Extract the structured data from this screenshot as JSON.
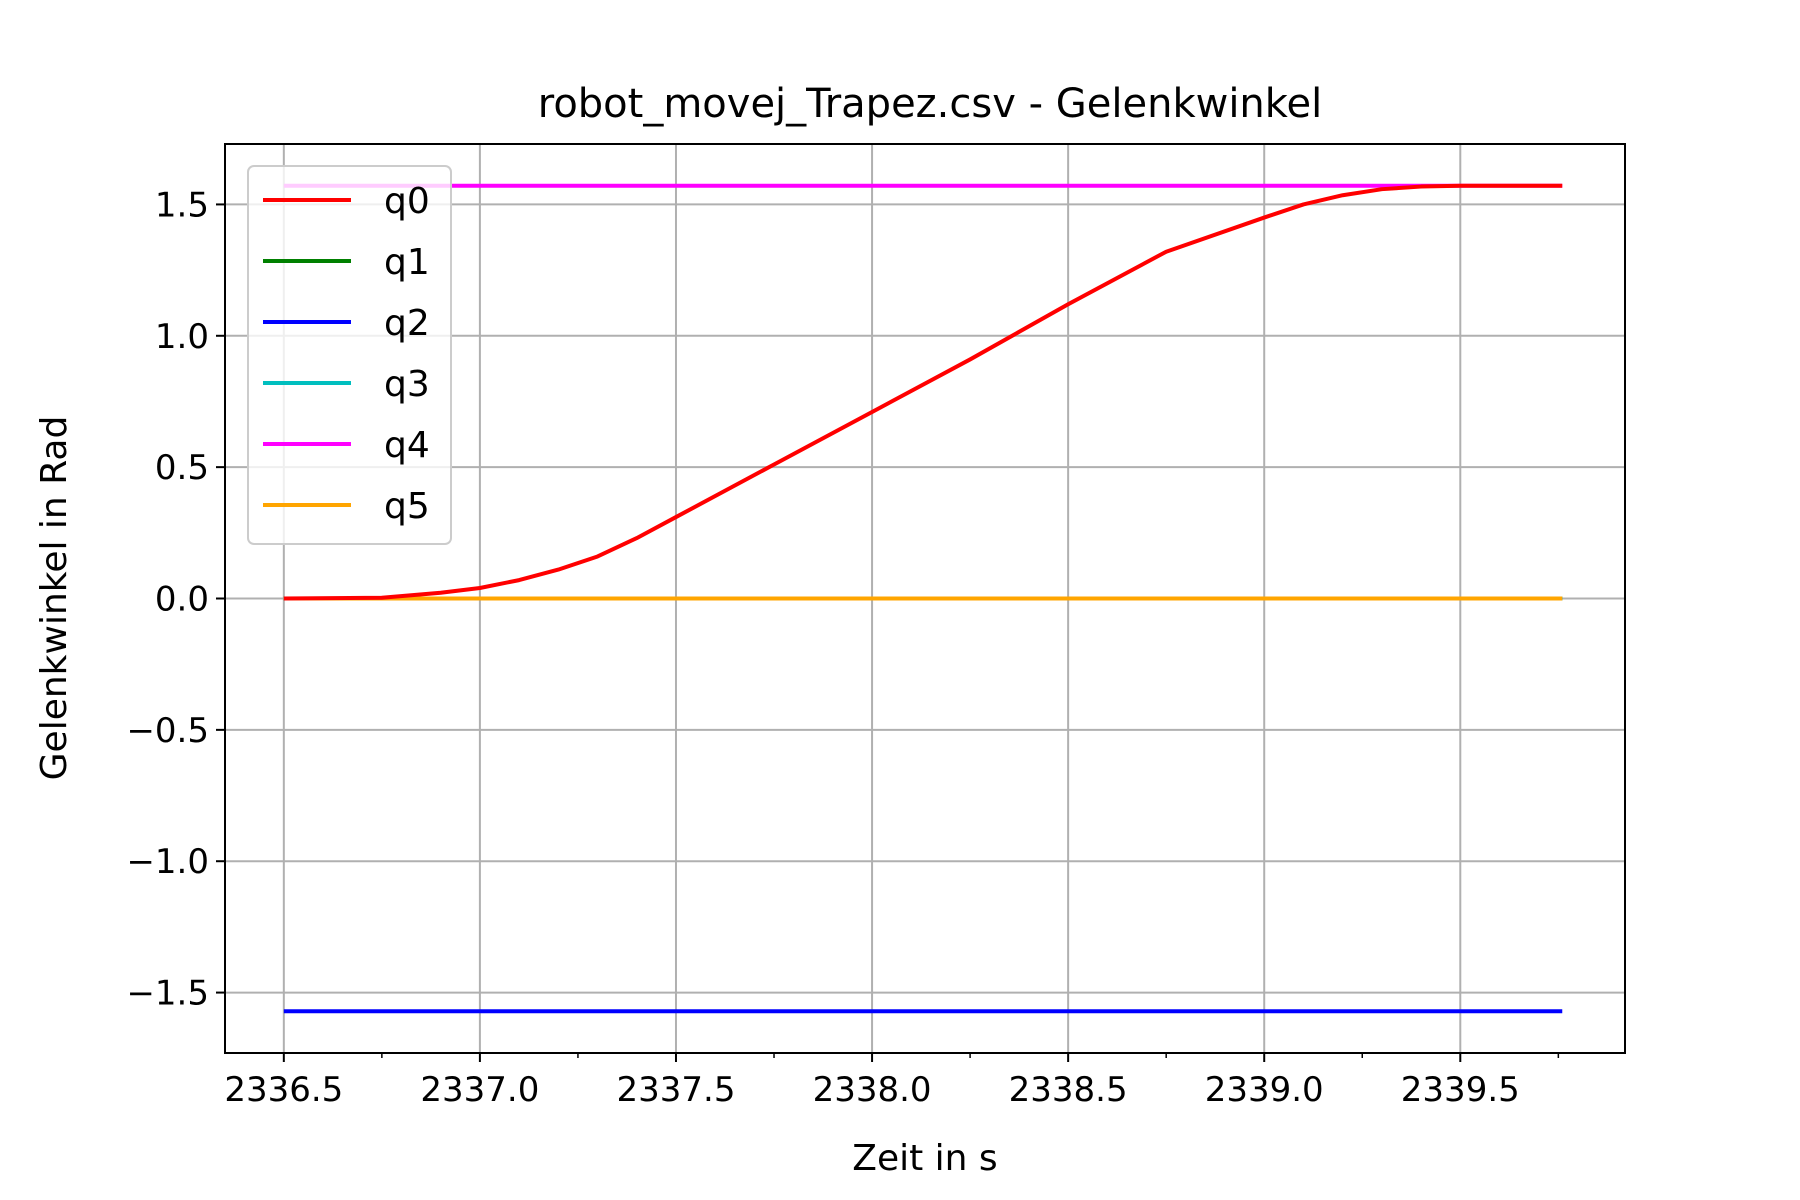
{
  "chart_data": {
    "type": "line",
    "title": "robot_movej_Trapez.csv - Gelenkwinkel",
    "xlabel": "Zeit in s",
    "ylabel": "Gelenkwinkel in Rad",
    "xlim": [
      2336.35,
      2339.92
    ],
    "ylim": [
      -1.73,
      1.73
    ],
    "xticks": [
      2336.5,
      2337.0,
      2337.5,
      2338.0,
      2338.5,
      2339.0,
      2339.5
    ],
    "xtick_labels": [
      "2336.5",
      "2337.0",
      "2337.5",
      "2338.0",
      "2338.5",
      "2339.0",
      "2339.5"
    ],
    "yticks": [
      -1.5,
      -1.0,
      -0.5,
      0.0,
      0.5,
      1.0,
      1.5
    ],
    "ytick_labels": [
      "−1.5",
      "−1.0",
      "−0.5",
      "0.0",
      "0.5",
      "1.0",
      "1.5"
    ],
    "grid": true,
    "legend_position": "top-left",
    "series": [
      {
        "name": "q0",
        "color": "#ff0000",
        "x": [
          2336.5,
          2336.75,
          2336.9,
          2337.0,
          2337.1,
          2337.2,
          2337.3,
          2337.4,
          2337.5,
          2337.75,
          2338.0,
          2338.25,
          2338.5,
          2338.75,
          2339.0,
          2339.1,
          2339.2,
          2339.3,
          2339.4,
          2339.5,
          2339.76
        ],
        "y": [
          0.0,
          0.003,
          0.022,
          0.04,
          0.07,
          0.11,
          0.16,
          0.23,
          0.31,
          0.51,
          0.71,
          0.91,
          1.12,
          1.32,
          1.45,
          1.5,
          1.535,
          1.558,
          1.568,
          1.571,
          1.571
        ]
      },
      {
        "name": "q1",
        "color": "#008000",
        "x": [
          2336.5,
          2339.76
        ],
        "y": [
          0.0,
          0.0
        ]
      },
      {
        "name": "q2",
        "color": "#0000ff",
        "x": [
          2336.5,
          2339.76
        ],
        "y": [
          -1.571,
          -1.571
        ]
      },
      {
        "name": "q3",
        "color": "#00bfbf",
        "x": [
          2336.5,
          2339.76
        ],
        "y": [
          0.0,
          0.0
        ]
      },
      {
        "name": "q4",
        "color": "#ff00ff",
        "x": [
          2336.5,
          2339.76
        ],
        "y": [
          1.571,
          1.571
        ]
      },
      {
        "name": "q5",
        "color": "#ffa500",
        "x": [
          2336.5,
          2339.76
        ],
        "y": [
          0.0,
          0.0
        ]
      }
    ]
  }
}
